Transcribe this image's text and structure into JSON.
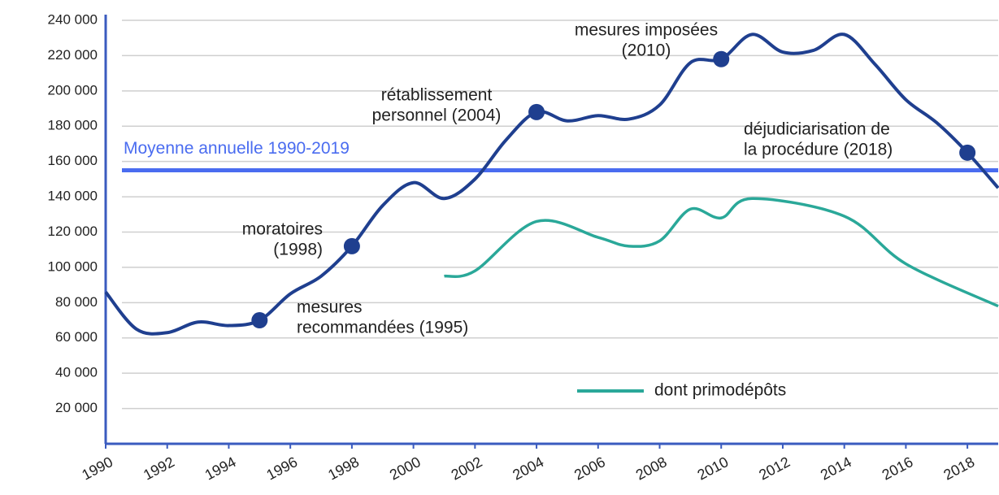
{
  "chart_data": {
    "type": "line",
    "xlim": [
      1990,
      2019
    ],
    "xticks": [
      1990,
      1992,
      1994,
      1996,
      1998,
      2000,
      2002,
      2004,
      2006,
      2008,
      2010,
      2012,
      2014,
      2016,
      2018
    ],
    "ylim": [
      0,
      240000
    ],
    "yticks": [
      {
        "value": 20000,
        "label": "20 000"
      },
      {
        "value": 40000,
        "label": "40 000"
      },
      {
        "value": 60000,
        "label": "60 000"
      },
      {
        "value": 80000,
        "label": "80 000"
      },
      {
        "value": 100000,
        "label": "100 000"
      },
      {
        "value": 120000,
        "label": "120 000"
      },
      {
        "value": 140000,
        "label": "140 000"
      },
      {
        "value": 160000,
        "label": "160 000"
      },
      {
        "value": 180000,
        "label": "180 000"
      },
      {
        "value": 200000,
        "label": "200 000"
      },
      {
        "value": 220000,
        "label": "220 000"
      },
      {
        "value": 240000,
        "label": "240 000"
      }
    ],
    "grid": true,
    "series": [
      {
        "color": "#1f3f8f",
        "x": [
          1990,
          1991,
          1992,
          1993,
          1994,
          1995,
          1996,
          1997,
          1998,
          1999,
          2000,
          2001,
          2002,
          2003,
          2004,
          2005,
          2006,
          2007,
          2008,
          2009,
          2010,
          2011,
          2012,
          2013,
          2014,
          2015,
          2016,
          2017,
          2018,
          2019
        ],
        "values": [
          86000,
          65000,
          63000,
          69000,
          67000,
          70000,
          85000,
          95000,
          112000,
          135000,
          148000,
          139000,
          150000,
          172000,
          188000,
          183000,
          186000,
          184000,
          192000,
          216000,
          218000,
          232000,
          222000,
          223000,
          232000,
          215000,
          195000,
          182000,
          165000,
          145000
        ]
      },
      {
        "name": "dont primodépôts",
        "color": "#2aa899",
        "x": [
          2001,
          2002,
          2004,
          2006,
          2007,
          2008,
          2009,
          2010,
          2011,
          2014,
          2016,
          2019
        ],
        "values": [
          95000,
          98000,
          126000,
          117000,
          112000,
          115000,
          133000,
          128000,
          139000,
          129000,
          102000,
          78000
        ]
      }
    ],
    "average": {
      "label": "Moyenne annuelle 1990-2019",
      "value": 155000,
      "color": "#4a6cf0"
    },
    "annotations": [
      {
        "lines": [
          "mesures",
          "recommandées (1995)"
        ]
      },
      {
        "lines": [
          "moratoires",
          "(1998)"
        ]
      },
      {
        "lines": [
          "rétablissement",
          "personnel (2004)"
        ]
      },
      {
        "lines": [
          "mesures imposées",
          "(2010)"
        ]
      },
      {
        "lines": [
          "déjudiciarisation de",
          "la procédure (2018)"
        ]
      }
    ]
  }
}
